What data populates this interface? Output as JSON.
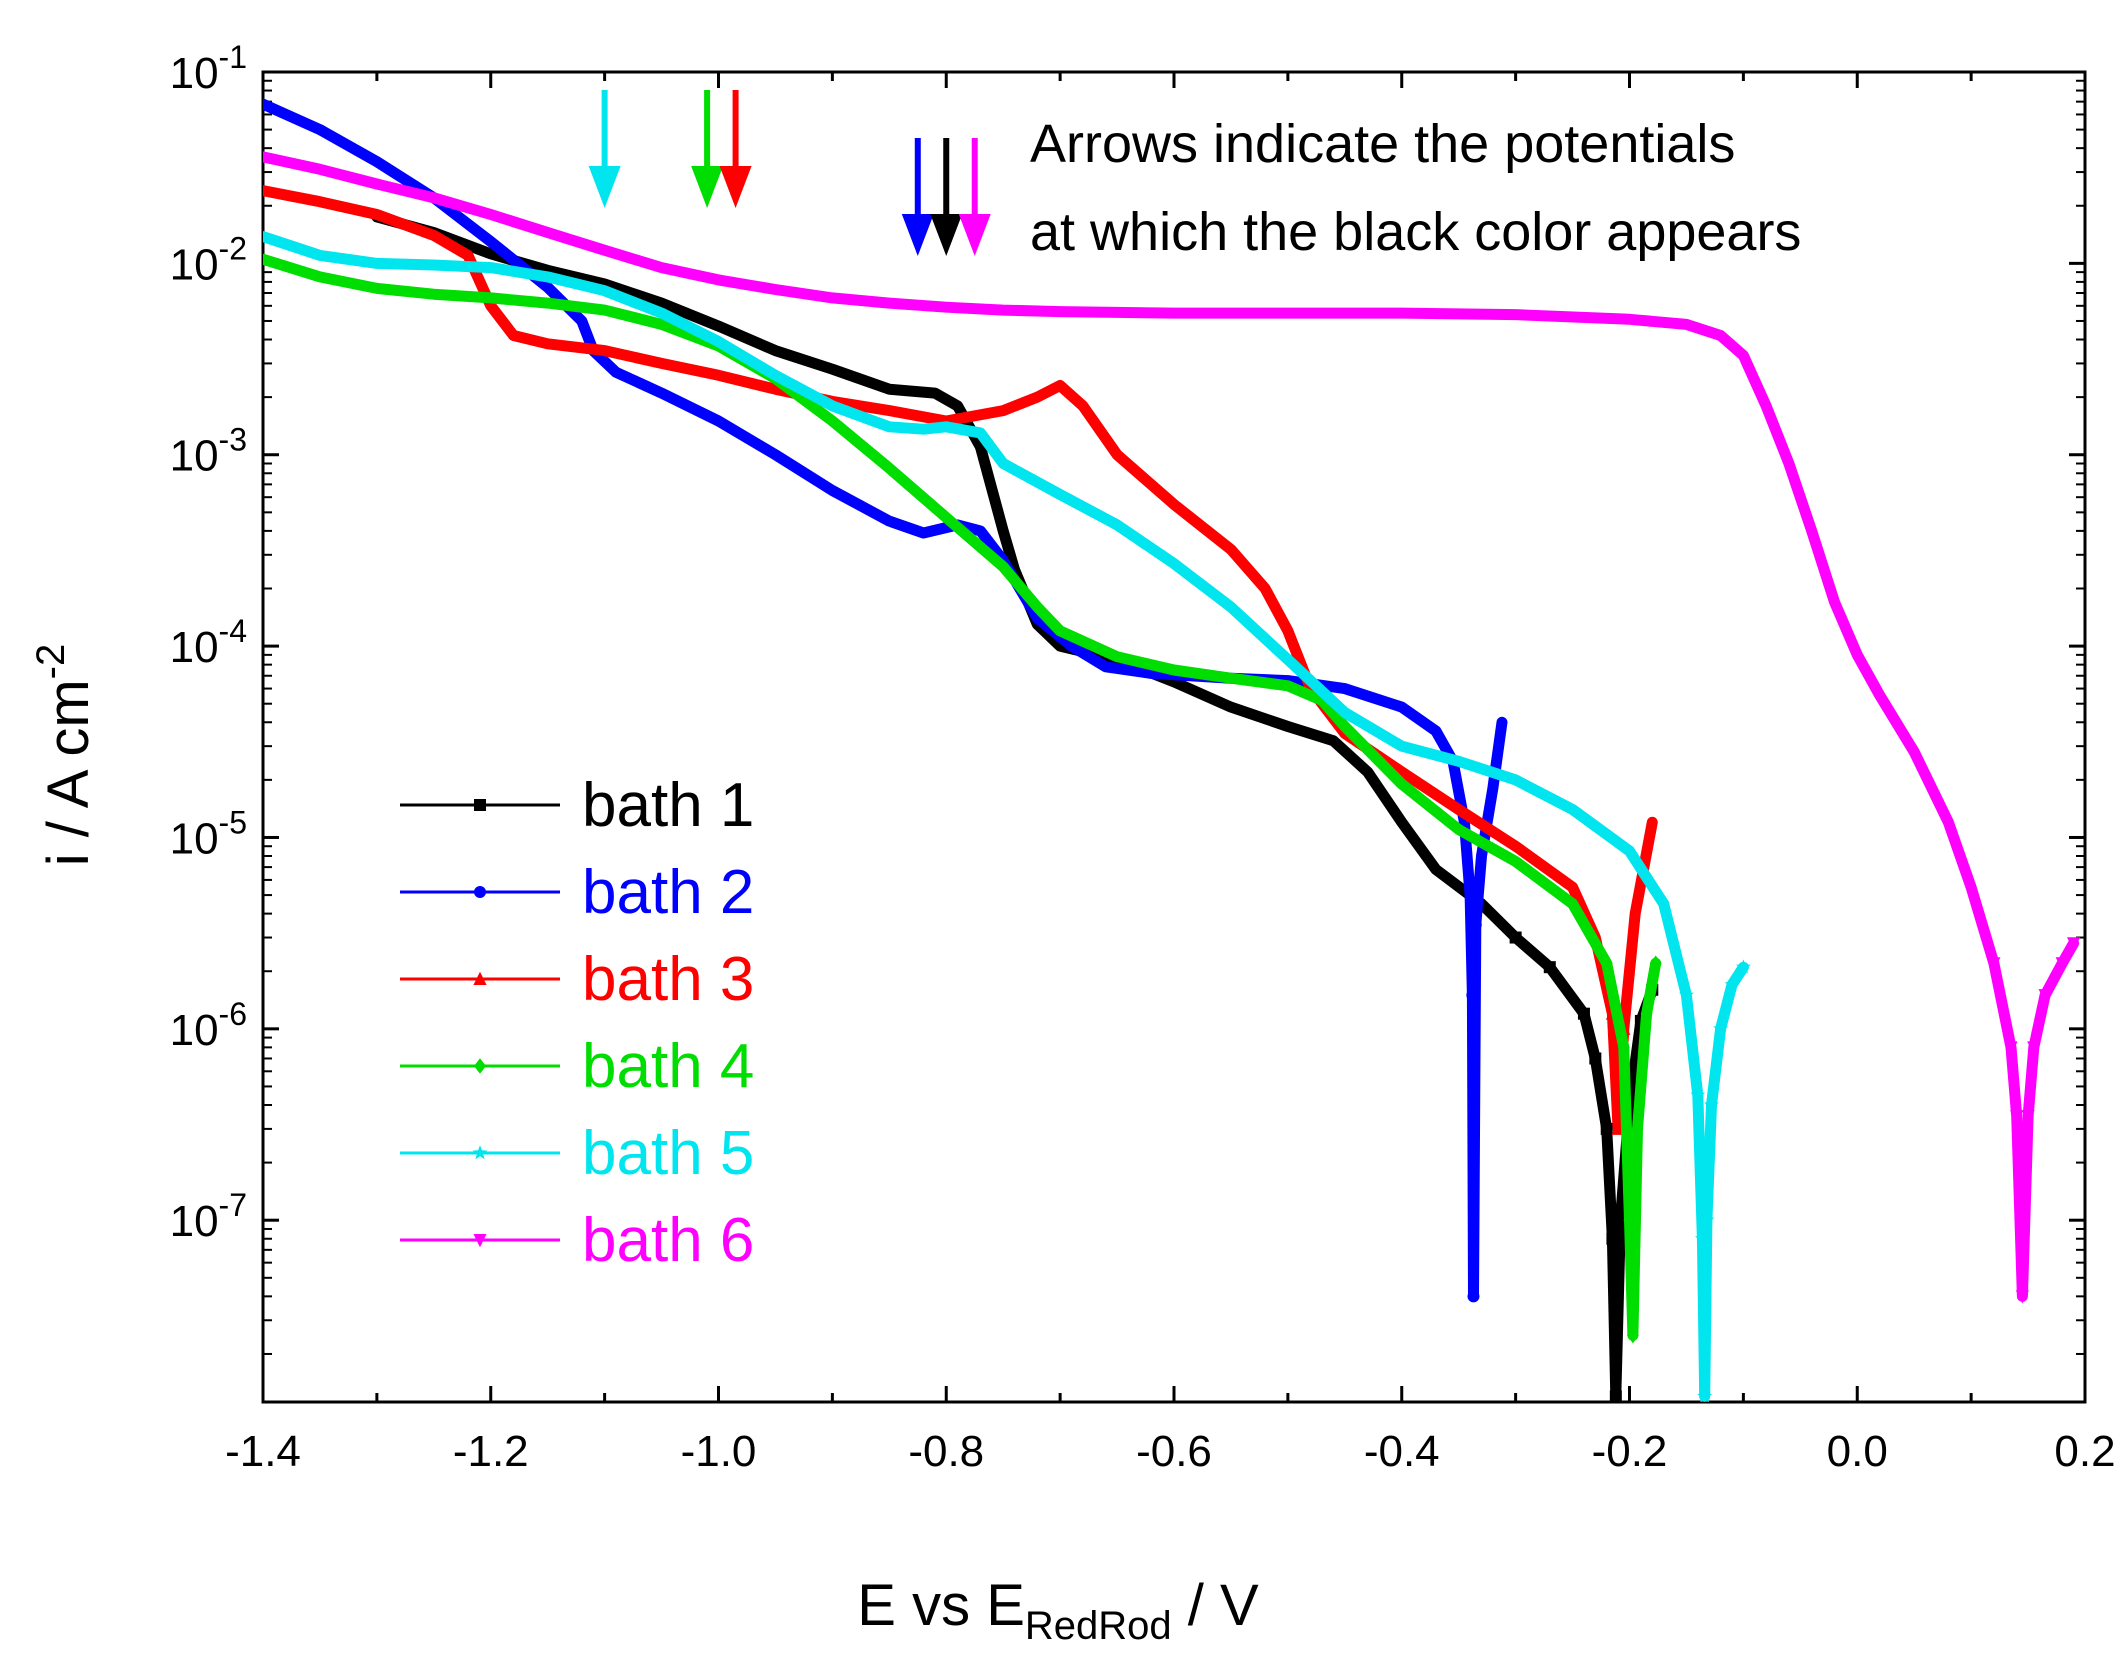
{
  "chart_data": {
    "type": "line",
    "xlabel": {
      "main": "E vs E",
      "sub": "RedRod",
      "suffix": " / V"
    },
    "ylabel": {
      "main": "i / A cm",
      "sup": "-2"
    },
    "xlim": [
      -1.4,
      0.2
    ],
    "ylim_log10": [
      -7.95,
      -1
    ],
    "y_scale": "log",
    "x_ticks": [
      -1.4,
      -1.2,
      -1.0,
      -0.8,
      -0.6,
      -0.4,
      -0.2,
      0.0,
      0.2
    ],
    "x_tick_labels": [
      "-1.4",
      "-1.2",
      "-1.0",
      "-0.8",
      "-0.6",
      "-0.4",
      "-0.2",
      "0.0",
      "0.2"
    ],
    "y_ticks_exp": [
      -1,
      -2,
      -3,
      -4,
      -5,
      -6,
      -7
    ],
    "y_tick_base": "10",
    "y_tick_sups": [
      "-1",
      "-2",
      "-3",
      "-4",
      "-5",
      "-6",
      "-7"
    ],
    "legend_position": "lower-left",
    "annotation": [
      "Arrows indicate the potentials",
      "at which the black color appears"
    ],
    "arrows": [
      {
        "series": "bath 5",
        "x": -1.1,
        "color": "#00e5ee"
      },
      {
        "series": "bath 4",
        "x": -1.01,
        "color": "#00dd00"
      },
      {
        "series": "bath 3",
        "x": -0.985,
        "color": "#ff0000"
      },
      {
        "series": "bath 2",
        "x": -0.825,
        "color": "#0000ff"
      },
      {
        "series": "bath 1",
        "x": -0.8,
        "color": "#000000"
      },
      {
        "series": "bath 6",
        "x": -0.775,
        "color": "#ff00ff"
      }
    ],
    "series": [
      {
        "name": "bath 1",
        "color": "#000000",
        "marker": "square",
        "points": [
          [
            -1.3,
            0.0175
          ],
          [
            -1.25,
            0.0145
          ],
          [
            -1.2,
            0.0112
          ],
          [
            -1.15,
            0.0092
          ],
          [
            -1.1,
            0.0078
          ],
          [
            -1.05,
            0.0062
          ],
          [
            -1.0,
            0.0047
          ],
          [
            -0.95,
            0.0035
          ],
          [
            -0.9,
            0.0028
          ],
          [
            -0.85,
            0.0022
          ],
          [
            -0.81,
            0.0021
          ],
          [
            -0.79,
            0.0018
          ],
          [
            -0.77,
            0.0011
          ],
          [
            -0.75,
            0.0004
          ],
          [
            -0.74,
            0.00025
          ],
          [
            -0.72,
            0.00013
          ],
          [
            -0.7,
            0.0001
          ],
          [
            -0.65,
            8.5e-05
          ],
          [
            -0.6,
            6.5e-05
          ],
          [
            -0.55,
            4.8e-05
          ],
          [
            -0.5,
            3.8e-05
          ],
          [
            -0.46,
            3.2e-05
          ],
          [
            -0.43,
            2.2e-05
          ],
          [
            -0.4,
            1.2e-05
          ],
          [
            -0.37,
            6.8e-06
          ],
          [
            -0.33,
            4.5e-06
          ],
          [
            -0.3,
            3e-06
          ],
          [
            -0.27,
            2.1e-06
          ],
          [
            -0.24,
            1.2e-06
          ],
          [
            -0.23,
            7e-07
          ],
          [
            -0.22,
            3e-07
          ],
          [
            -0.215,
            8e-08
          ],
          [
            -0.212,
            1.2e-08
          ],
          [
            -0.208,
            1e-07
          ],
          [
            -0.2,
            4e-07
          ],
          [
            -0.19,
            1.1e-06
          ],
          [
            -0.18,
            1.6e-06
          ]
        ]
      },
      {
        "name": "bath 2",
        "color": "#0000ff",
        "marker": "circle",
        "points": [
          [
            -1.4,
            0.068
          ],
          [
            -1.35,
            0.05
          ],
          [
            -1.3,
            0.034
          ],
          [
            -1.25,
            0.022
          ],
          [
            -1.2,
            0.013
          ],
          [
            -1.15,
            0.0075
          ],
          [
            -1.12,
            0.005
          ],
          [
            -1.11,
            0.0035
          ],
          [
            -1.09,
            0.0027
          ],
          [
            -1.05,
            0.0021
          ],
          [
            -1.0,
            0.0015
          ],
          [
            -0.95,
            0.001
          ],
          [
            -0.9,
            0.00065
          ],
          [
            -0.85,
            0.00045
          ],
          [
            -0.82,
            0.00039
          ],
          [
            -0.79,
            0.00043
          ],
          [
            -0.77,
            0.0004
          ],
          [
            -0.75,
            0.00028
          ],
          [
            -0.72,
            0.00014
          ],
          [
            -0.69,
            0.0001
          ],
          [
            -0.66,
            7.8e-05
          ],
          [
            -0.62,
            7.2e-05
          ],
          [
            -0.55,
            6.8e-05
          ],
          [
            -0.5,
            6.6e-05
          ],
          [
            -0.45,
            6e-05
          ],
          [
            -0.4,
            4.8e-05
          ],
          [
            -0.37,
            3.6e-05
          ],
          [
            -0.355,
            2.5e-05
          ],
          [
            -0.345,
            1.2e-05
          ],
          [
            -0.34,
            5e-06
          ],
          [
            -0.338,
            1.5e-06
          ],
          [
            -0.337,
            4e-08
          ],
          [
            -0.335,
            3.5e-06
          ],
          [
            -0.33,
            8e-06
          ],
          [
            -0.32,
            1.8e-05
          ],
          [
            -0.312,
            4e-05
          ]
        ]
      },
      {
        "name": "bath 3",
        "color": "#ff0000",
        "marker": "triangle-up",
        "points": [
          [
            -1.4,
            0.024
          ],
          [
            -1.35,
            0.021
          ],
          [
            -1.3,
            0.018
          ],
          [
            -1.25,
            0.014
          ],
          [
            -1.22,
            0.011
          ],
          [
            -1.2,
            0.006
          ],
          [
            -1.18,
            0.0042
          ],
          [
            -1.15,
            0.0038
          ],
          [
            -1.1,
            0.0035
          ],
          [
            -1.05,
            0.003
          ],
          [
            -1.0,
            0.0026
          ],
          [
            -0.95,
            0.0022
          ],
          [
            -0.9,
            0.0019
          ],
          [
            -0.85,
            0.0017
          ],
          [
            -0.8,
            0.0015
          ],
          [
            -0.75,
            0.0017
          ],
          [
            -0.72,
            0.002
          ],
          [
            -0.7,
            0.0023
          ],
          [
            -0.68,
            0.0018
          ],
          [
            -0.65,
            0.001
          ],
          [
            -0.6,
            0.00055
          ],
          [
            -0.55,
            0.00032
          ],
          [
            -0.52,
            0.0002
          ],
          [
            -0.5,
            0.00012
          ],
          [
            -0.48,
            6e-05
          ],
          [
            -0.45,
            3.5e-05
          ],
          [
            -0.4,
            2.2e-05
          ],
          [
            -0.35,
            1.4e-05
          ],
          [
            -0.3,
            9e-06
          ],
          [
            -0.25,
            5.5e-06
          ],
          [
            -0.23,
            3e-06
          ],
          [
            -0.215,
            1.2e-06
          ],
          [
            -0.21,
            3e-07
          ],
          [
            -0.205,
            1e-06
          ],
          [
            -0.195,
            4e-06
          ],
          [
            -0.18,
            1.2e-05
          ]
        ]
      },
      {
        "name": "bath 4",
        "color": "#00dd00",
        "marker": "diamond",
        "points": [
          [
            -1.4,
            0.0105
          ],
          [
            -1.35,
            0.0085
          ],
          [
            -1.3,
            0.0074
          ],
          [
            -1.25,
            0.0069
          ],
          [
            -1.2,
            0.0066
          ],
          [
            -1.15,
            0.0062
          ],
          [
            -1.1,
            0.0057
          ],
          [
            -1.05,
            0.0048
          ],
          [
            -1.0,
            0.0037
          ],
          [
            -0.95,
            0.0025
          ],
          [
            -0.9,
            0.0015
          ],
          [
            -0.85,
            0.00085
          ],
          [
            -0.8,
            0.00047
          ],
          [
            -0.75,
            0.00026
          ],
          [
            -0.72,
            0.00016
          ],
          [
            -0.7,
            0.00012
          ],
          [
            -0.65,
            8.8e-05
          ],
          [
            -0.6,
            7.5e-05
          ],
          [
            -0.55,
            6.8e-05
          ],
          [
            -0.5,
            6.2e-05
          ],
          [
            -0.47,
            5.2e-05
          ],
          [
            -0.45,
            3.8e-05
          ],
          [
            -0.4,
            1.9e-05
          ],
          [
            -0.35,
            1.1e-05
          ],
          [
            -0.3,
            7.5e-06
          ],
          [
            -0.25,
            4.5e-06
          ],
          [
            -0.22,
            2.2e-06
          ],
          [
            -0.205,
            8e-07
          ],
          [
            -0.2,
            1e-07
          ],
          [
            -0.197,
            2.5e-08
          ],
          [
            -0.193,
            3e-07
          ],
          [
            -0.185,
            1.2e-06
          ],
          [
            -0.177,
            2.2e-06
          ]
        ]
      },
      {
        "name": "bath 5",
        "color": "#00e5ee",
        "marker": "star",
        "points": [
          [
            -1.4,
            0.0138
          ],
          [
            -1.35,
            0.011
          ],
          [
            -1.3,
            0.01
          ],
          [
            -1.25,
            0.0098
          ],
          [
            -1.2,
            0.0095
          ],
          [
            -1.15,
            0.0085
          ],
          [
            -1.1,
            0.0072
          ],
          [
            -1.05,
            0.0055
          ],
          [
            -1.0,
            0.0039
          ],
          [
            -0.95,
            0.0026
          ],
          [
            -0.9,
            0.0018
          ],
          [
            -0.85,
            0.0014
          ],
          [
            -0.82,
            0.00136
          ],
          [
            -0.8,
            0.0014
          ],
          [
            -0.77,
            0.0013
          ],
          [
            -0.75,
            0.0009
          ],
          [
            -0.7,
            0.00062
          ],
          [
            -0.65,
            0.00043
          ],
          [
            -0.6,
            0.00027
          ],
          [
            -0.55,
            0.00016
          ],
          [
            -0.5,
            8.5e-05
          ],
          [
            -0.45,
            4.5e-05
          ],
          [
            -0.4,
            3e-05
          ],
          [
            -0.35,
            2.5e-05
          ],
          [
            -0.3,
            2e-05
          ],
          [
            -0.25,
            1.4e-05
          ],
          [
            -0.2,
            8.5e-06
          ],
          [
            -0.17,
            4.5e-06
          ],
          [
            -0.15,
            1.5e-06
          ],
          [
            -0.14,
            4.5e-07
          ],
          [
            -0.136,
            8e-08
          ],
          [
            -0.134,
            1.2e-08
          ],
          [
            -0.132,
            1e-07
          ],
          [
            -0.128,
            4e-07
          ],
          [
            -0.12,
            1e-06
          ],
          [
            -0.11,
            1.7e-06
          ],
          [
            -0.1,
            2.1e-06
          ]
        ]
      },
      {
        "name": "bath 6",
        "color": "#ff00ff",
        "marker": "triangle-down",
        "points": [
          [
            -1.4,
            0.036
          ],
          [
            -1.35,
            0.031
          ],
          [
            -1.3,
            0.026
          ],
          [
            -1.25,
            0.022
          ],
          [
            -1.2,
            0.018
          ],
          [
            -1.15,
            0.0145
          ],
          [
            -1.1,
            0.0117
          ],
          [
            -1.05,
            0.0095
          ],
          [
            -1.0,
            0.0082
          ],
          [
            -0.95,
            0.0073
          ],
          [
            -0.9,
            0.0066
          ],
          [
            -0.85,
            0.0062
          ],
          [
            -0.8,
            0.0059
          ],
          [
            -0.75,
            0.0057
          ],
          [
            -0.7,
            0.0056
          ],
          [
            -0.6,
            0.0055
          ],
          [
            -0.5,
            0.0055
          ],
          [
            -0.4,
            0.0055
          ],
          [
            -0.3,
            0.0054
          ],
          [
            -0.2,
            0.0051
          ],
          [
            -0.15,
            0.0048
          ],
          [
            -0.12,
            0.0042
          ],
          [
            -0.1,
            0.0033
          ],
          [
            -0.08,
            0.0018
          ],
          [
            -0.06,
            0.0009
          ],
          [
            -0.04,
            0.0004
          ],
          [
            -0.02,
            0.00017
          ],
          [
            0.0,
            9e-05
          ],
          [
            0.02,
            5.5e-05
          ],
          [
            0.05,
            2.8e-05
          ],
          [
            0.08,
            1.2e-05
          ],
          [
            0.1,
            5.5e-06
          ],
          [
            0.12,
            2.2e-06
          ],
          [
            0.135,
            8e-07
          ],
          [
            0.14,
            3.5e-07
          ],
          [
            0.145,
            4e-08
          ],
          [
            0.15,
            3.5e-07
          ],
          [
            0.155,
            8e-07
          ],
          [
            0.165,
            1.5e-06
          ],
          [
            0.18,
            2.2e-06
          ],
          [
            0.19,
            2.8e-06
          ]
        ]
      }
    ]
  }
}
